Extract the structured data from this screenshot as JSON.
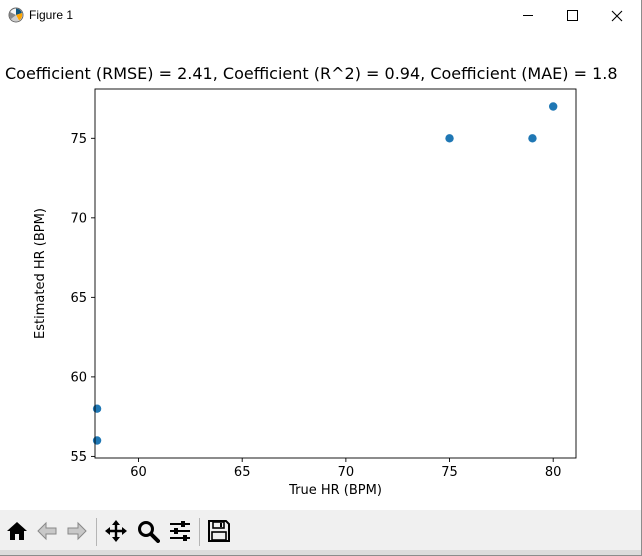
{
  "window": {
    "title": "Figure 1",
    "icon": "matplotlib-figure-icon",
    "controls": [
      "minimize-icon",
      "maximize-icon",
      "close-icon"
    ]
  },
  "toolbar": {
    "buttons": [
      "home-icon",
      "back-arrow-icon",
      "forward-arrow-icon",
      "pan-icon",
      "zoom-icon",
      "configure-subplots-icon",
      "save-icon"
    ]
  },
  "chart_data": {
    "type": "scatter",
    "title": "Coefficient (RMSE) = 2.41, Coefficient (R^2) = 0.94, Coefficient (MAE) = 1.8",
    "xlabel": "True HR (BPM)",
    "ylabel": "Estimated HR (BPM)",
    "xlim": [
      57.9,
      81.1
    ],
    "ylim": [
      54.9,
      78.1
    ],
    "xticks": [
      60,
      65,
      70,
      75,
      80
    ],
    "yticks": [
      55,
      60,
      65,
      70,
      75
    ],
    "grid": false,
    "marker_color": "#1f77b4",
    "points": [
      {
        "x": 58,
        "y": 58
      },
      {
        "x": 58,
        "y": 56
      },
      {
        "x": 75,
        "y": 75
      },
      {
        "x": 79,
        "y": 75
      },
      {
        "x": 80,
        "y": 77
      }
    ]
  }
}
